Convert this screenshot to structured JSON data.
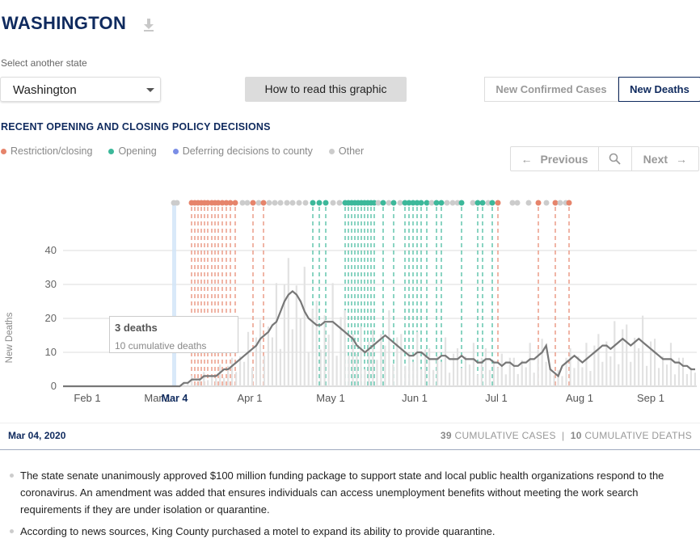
{
  "header": {
    "title": "WASHINGTON"
  },
  "state_select": {
    "label": "Select another state",
    "value": "Washington"
  },
  "howto_button": "How to read this graphic",
  "toggle": {
    "cases": "New Confirmed Cases",
    "deaths": "New Deaths",
    "active": "deaths"
  },
  "section_title": "RECENT OPENING AND CLOSING POLICY DECISIONS",
  "legend": [
    {
      "label": "Restriction/closing",
      "color": "#e6846b"
    },
    {
      "label": "Opening",
      "color": "#3cb89a"
    },
    {
      "label": "Deferring decisions to county",
      "color": "#7b8ee6"
    },
    {
      "label": "Other",
      "color": "#cccccc"
    }
  ],
  "nav": {
    "previous": "Previous",
    "next": "Next"
  },
  "chart_data": {
    "type": "bar",
    "ylabel": "New Deaths",
    "ylim": [
      0,
      45
    ],
    "yticks": [
      0,
      10,
      20,
      30,
      40
    ],
    "xtick_labels": [
      "Feb 1",
      "Mar 1",
      "Apr 1",
      "May 1",
      "Jun 1",
      "Jul 1",
      "Aug 1",
      "Sep 1"
    ],
    "selected_date_label": "Mar 4",
    "line_series_approx": [
      0,
      0,
      0,
      0,
      0,
      0,
      0,
      0,
      0,
      0,
      0,
      0,
      0,
      0,
      0,
      0,
      0,
      0,
      0,
      0,
      0,
      0,
      0,
      0,
      0,
      0,
      0,
      0,
      0,
      0,
      1,
      1,
      2,
      2,
      2,
      3,
      3,
      3,
      3,
      4,
      5,
      5,
      6,
      7,
      8,
      9,
      10,
      11,
      12,
      14,
      15,
      16,
      18,
      19,
      22,
      25,
      27,
      28,
      27,
      25,
      22,
      20,
      19,
      18,
      18,
      19,
      19,
      19,
      18,
      17,
      16,
      15,
      14,
      12,
      11,
      10,
      11,
      12,
      13,
      14,
      15,
      14,
      13,
      12,
      11,
      10,
      9,
      9,
      10,
      10,
      9,
      8,
      8,
      8,
      9,
      9,
      8,
      8,
      8,
      9,
      8,
      8,
      8,
      7,
      7,
      8,
      8,
      7,
      7,
      6,
      7,
      7,
      6,
      6,
      7,
      7,
      8,
      8,
      9,
      10,
      12,
      5,
      4,
      3,
      6,
      7,
      8,
      9,
      8,
      7,
      8,
      9,
      10,
      11,
      12,
      12,
      11,
      12,
      13,
      14,
      13,
      12,
      13,
      14,
      13,
      12,
      11,
      10,
      9,
      8,
      8,
      8,
      7,
      7,
      6,
      6,
      5,
      5
    ]
  },
  "tooltip": {
    "deaths": "3 deaths",
    "cumulative": "10 cumulative deaths"
  },
  "date_bar": {
    "date": "Mar 04, 2020",
    "cases_num": "39",
    "cases_label": "CUMULATIVE CASES",
    "deaths_num": "10",
    "deaths_label": "CUMULATIVE DEATHS"
  },
  "notes": [
    "The state senate unanimously approved $100 million funding package to support state and local public health organizations respond to the coronavirus. An amendment was added that ensures individuals can access unemployment benefits without meeting the work search requirements if they are under isolation or quarantine.",
    "According to news sources, King County purchased a motel to expand its ability to provide quarantine."
  ]
}
